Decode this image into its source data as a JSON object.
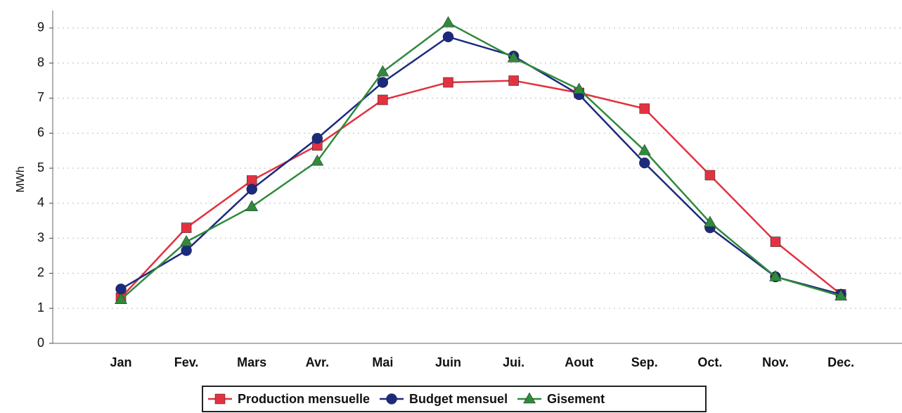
{
  "chart_data": {
    "type": "line",
    "y_label": "MWh",
    "categories": [
      "Jan",
      "Fev.",
      "Mars",
      "Avr.",
      "Mai",
      "Juin",
      "Jui.",
      "Aout",
      "Sep.",
      "Oct.",
      "Nov.",
      "Dec."
    ],
    "series": [
      {
        "name": "Production mensuelle",
        "color": "#e23240",
        "marker": "square",
        "values": [
          1.3,
          3.3,
          4.65,
          5.65,
          6.95,
          7.45,
          7.5,
          7.15,
          6.7,
          4.8,
          2.9,
          1.4
        ]
      },
      {
        "name": "Budget mensuel",
        "color": "#1c2a7e",
        "marker": "circle",
        "values": [
          1.55,
          2.65,
          4.4,
          5.85,
          7.45,
          8.75,
          8.2,
          7.1,
          5.15,
          3.3,
          1.9,
          1.4
        ]
      },
      {
        "name": "Gisement",
        "color": "#2f8a3b",
        "marker": "triangle",
        "values": [
          1.25,
          2.9,
          3.9,
          5.2,
          7.75,
          9.15,
          8.15,
          7.25,
          5.5,
          3.45,
          1.9,
          1.35
        ]
      }
    ],
    "ylim": [
      0,
      9.5
    ],
    "yticks": [
      0,
      1,
      2,
      3,
      4,
      5,
      6,
      7,
      8,
      9
    ],
    "grid": true
  }
}
